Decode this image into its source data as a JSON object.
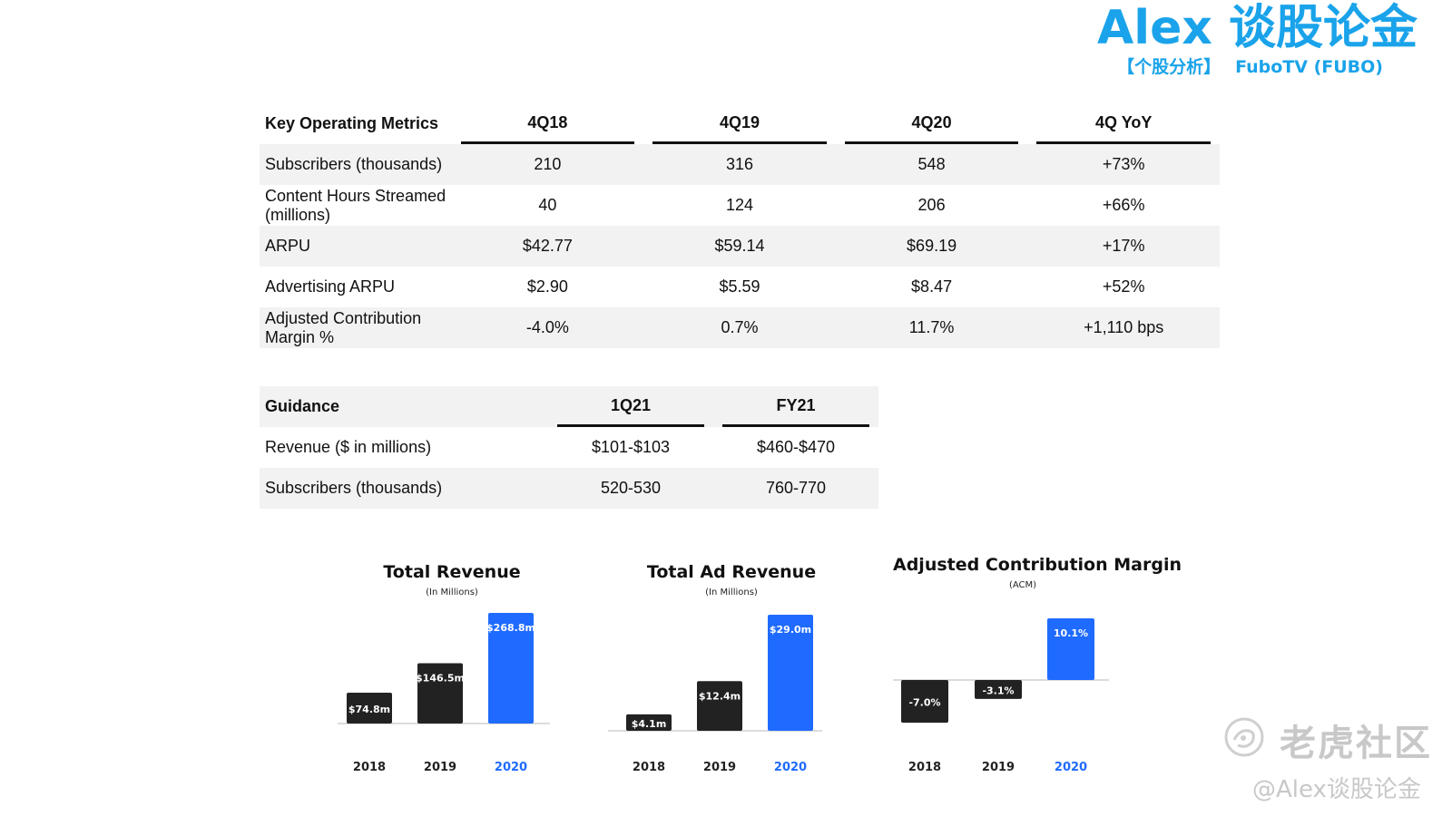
{
  "branding": {
    "title": "Alex 谈股论金",
    "subtitle_left": "【个股分析】",
    "subtitle_right": "FuboTV (FUBO)",
    "color": "#1aa3ea"
  },
  "metrics_table": {
    "headers": [
      "Key Operating Metrics",
      "4Q18",
      "4Q19",
      "4Q20",
      "4Q YoY"
    ],
    "rows": [
      [
        "Subscribers (thousands)",
        "210",
        "316",
        "548",
        "+73%"
      ],
      [
        "Content Hours Streamed (millions)",
        "40",
        "124",
        "206",
        "+66%"
      ],
      [
        "ARPU",
        "$42.77",
        "$59.14",
        "$69.19",
        "+17%"
      ],
      [
        "Advertising ARPU",
        "$2.90",
        "$5.59",
        "$8.47",
        "+52%"
      ],
      [
        "Adjusted Contribution Margin %",
        "-4.0%",
        "0.7%",
        "11.7%",
        "+1,110 bps"
      ]
    ]
  },
  "guidance_table": {
    "headers": [
      "Guidance",
      "1Q21",
      "FY21"
    ],
    "rows": [
      [
        "Revenue ($ in millions)",
        "$101-$103",
        "$460-$470"
      ],
      [
        "Subscribers (thousands)",
        "520-530",
        "760-770"
      ]
    ]
  },
  "chart_data": [
    {
      "type": "bar",
      "title": "Total Revenue",
      "subtitle": "(In Millions)",
      "categories": [
        "2018",
        "2019",
        "2020"
      ],
      "values": [
        74.8,
        146.5,
        268.8
      ],
      "labels": [
        "$74.8m",
        "$146.5m",
        "$268.8m"
      ],
      "highlight_index": 2,
      "colors": {
        "default": "#222222",
        "highlight": "#1f6bff"
      }
    },
    {
      "type": "bar",
      "title": "Total Ad Revenue",
      "subtitle": "(In Millions)",
      "categories": [
        "2018",
        "2019",
        "2020"
      ],
      "values": [
        4.1,
        12.4,
        29.0
      ],
      "labels": [
        "$4.1m",
        "$12.4m",
        "$29.0m"
      ],
      "highlight_index": 2,
      "colors": {
        "default": "#222222",
        "highlight": "#1f6bff"
      }
    },
    {
      "type": "bar",
      "title": "Adjusted Contribution Margin",
      "subtitle": "(ACM)",
      "categories": [
        "2018",
        "2019",
        "2020"
      ],
      "values": [
        -7.0,
        -3.1,
        10.1
      ],
      "labels": [
        "-7.0%",
        "-3.1%",
        "10.1%"
      ],
      "highlight_index": 2,
      "colors": {
        "default": "#222222",
        "highlight": "#1f6bff"
      }
    }
  ],
  "watermark": {
    "name": "老虎社区",
    "handle": "@Alex谈股论金"
  }
}
